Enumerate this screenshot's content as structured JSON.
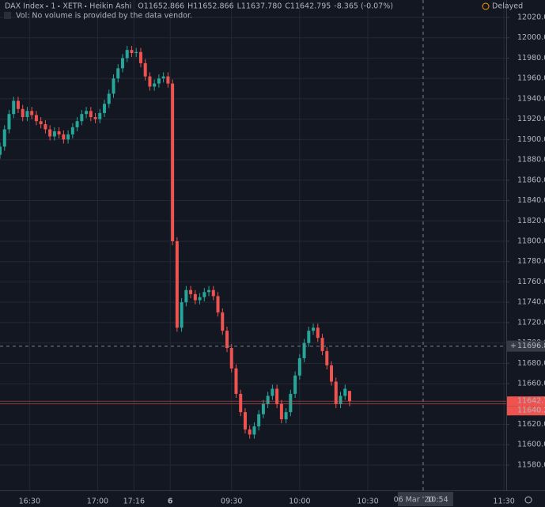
{
  "chart_data": {
    "type": "candlestick",
    "header": {
      "symbol": "DAX Index",
      "interval": "1",
      "exchange": "XETR",
      "style": "Heikin Ashi",
      "status": "Delayed",
      "volume_note": "Vol: No volume is provided by the data vendor."
    },
    "legend_values": [
      {
        "key": "O",
        "value": 11652.866
      },
      {
        "key": "H",
        "value": 11652.866
      },
      {
        "key": "L",
        "value": 11637.78,
        "label": "11637.780"
      },
      {
        "key": "C",
        "value": 11642.795
      }
    ],
    "change": "-8.365 (-0.07%)",
    "up_color": "#26a69a",
    "down_color": "#ef5350",
    "open": [
      11885,
      11893,
      11910,
      11925,
      11938,
      11930,
      11922,
      11928,
      11924,
      11918,
      11915,
      11910,
      11903,
      11908,
      11905,
      11900,
      11905,
      11912,
      11918,
      11925,
      11928,
      11922,
      11920,
      11926,
      11935,
      11945,
      11960,
      11970,
      11980,
      11988,
      11985,
      11986,
      11975,
      11962,
      11952,
      11955,
      11960,
      11962,
      11955,
      11800,
      11715,
      11740,
      11752,
      11748,
      11742,
      11745,
      11750,
      11752,
      11746,
      11730,
      11712,
      11695,
      11675,
      11650,
      11632,
      11615,
      11610,
      11618,
      11630,
      11640,
      11648,
      11655,
      11640,
      11625,
      11632,
      11650,
      11668,
      11685,
      11700,
      11712,
      11715,
      11705,
      11692,
      11678,
      11662,
      11640,
      11648,
      11652.866
    ],
    "high": [
      11897,
      11914,
      11929,
      11942,
      11942,
      11934,
      11932,
      11932,
      11928,
      11922,
      11919,
      11914,
      11912,
      11912,
      11909,
      11909,
      11916,
      11922,
      11929,
      11932,
      11932,
      11926,
      11930,
      11939,
      11949,
      11964,
      11974,
      11984,
      11992,
      11992,
      11990,
      11990,
      11979,
      11966,
      11959,
      11964,
      11966,
      11966,
      11959,
      11804,
      11744,
      11756,
      11756,
      11752,
      11749,
      11754,
      11756,
      11756,
      11750,
      11734,
      11716,
      11699,
      11679,
      11654,
      11636,
      11619,
      11622,
      11634,
      11644,
      11652,
      11659,
      11659,
      11644,
      11636,
      11654,
      11672,
      11689,
      11704,
      11716,
      11719,
      11719,
      11709,
      11696,
      11682,
      11666,
      11652,
      11659,
      11652.866
    ],
    "low": [
      11881,
      11889,
      11906,
      11921,
      11926,
      11918,
      11918,
      11920,
      11914,
      11911,
      11906,
      11899,
      11899,
      11901,
      11896,
      11896,
      11901,
      11908,
      11914,
      11921,
      11918,
      11916,
      11916,
      11922,
      11931,
      11941,
      11956,
      11966,
      11976,
      11981,
      11981,
      11971,
      11958,
      11948,
      11948,
      11951,
      11956,
      11951,
      11796,
      11711,
      11711,
      11736,
      11744,
      11738,
      11738,
      11741,
      11746,
      11742,
      11726,
      11708,
      11691,
      11671,
      11646,
      11628,
      11611,
      11606,
      11606,
      11614,
      11626,
      11636,
      11644,
      11636,
      11621,
      11621,
      11628,
      11646,
      11664,
      11681,
      11696,
      11708,
      11701,
      11688,
      11674,
      11658,
      11636,
      11636,
      11644,
      11637.78
    ],
    "close": [
      11893,
      11910,
      11925,
      11938,
      11930,
      11922,
      11928,
      11924,
      11918,
      11915,
      11910,
      11903,
      11908,
      11905,
      11900,
      11905,
      11912,
      11918,
      11925,
      11928,
      11922,
      11920,
      11926,
      11935,
      11945,
      11960,
      11970,
      11980,
      11988,
      11985,
      11986,
      11975,
      11962,
      11952,
      11955,
      11960,
      11962,
      11955,
      11800,
      11715,
      11740,
      11752,
      11748,
      11742,
      11745,
      11750,
      11752,
      11746,
      11730,
      11712,
      11695,
      11675,
      11650,
      11632,
      11615,
      11610,
      11618,
      11630,
      11640,
      11648,
      11655,
      11640,
      11625,
      11632,
      11650,
      11668,
      11685,
      11700,
      11712,
      11715,
      11705,
      11692,
      11678,
      11662,
      11640,
      11648,
      11655,
      11642.795
    ],
    "x": [
      0,
      2,
      4,
      6,
      8,
      10,
      12,
      14,
      16,
      18,
      20,
      22,
      24,
      26,
      28,
      30,
      32,
      34,
      36,
      38,
      40,
      42,
      44,
      46,
      48,
      50,
      52,
      54,
      56,
      58,
      60,
      62,
      64,
      66,
      68,
      70,
      72,
      74,
      76,
      78,
      80,
      82,
      84,
      86,
      88,
      90,
      92,
      94,
      96,
      98,
      100,
      102,
      104,
      106,
      108,
      110,
      112,
      114,
      116,
      118,
      120,
      122,
      124,
      126,
      128,
      130,
      132,
      134,
      136,
      138,
      140,
      142,
      144,
      146,
      148,
      150,
      152,
      154
    ],
    "xlim": [
      0,
      223
    ],
    "xticks": [
      {
        "value": 13,
        "label": "16:30"
      },
      {
        "value": 43,
        "label": "17:00"
      },
      {
        "value": 59,
        "label": "17:16"
      },
      {
        "value": 75,
        "label": "6"
      },
      {
        "value": 102,
        "label": "09:30"
      },
      {
        "value": 132,
        "label": "10:00"
      },
      {
        "value": 162,
        "label": "10:30"
      },
      {
        "value": 222,
        "label": "11:30"
      }
    ],
    "ylim": [
      11555.1,
      12037.1
    ],
    "yticks": [
      {
        "value": 11580,
        "label": "11580.000"
      },
      {
        "value": 11600,
        "label": "11600.000"
      },
      {
        "value": 11620,
        "label": "11620.000"
      },
      {
        "value": 11640,
        "label": "11640.000"
      },
      {
        "value": 11660,
        "label": "11660.000"
      },
      {
        "value": 11680,
        "label": "11680.000"
      },
      {
        "value": 11700,
        "label": "11700.000"
      },
      {
        "value": 11720,
        "label": "11720.000"
      },
      {
        "value": 11740,
        "label": "11740.000"
      },
      {
        "value": 11760,
        "label": "11760.000"
      },
      {
        "value": 11780,
        "label": "11780.000"
      },
      {
        "value": 11800,
        "label": "11800.000"
      },
      {
        "value": 11820,
        "label": "11820.000"
      },
      {
        "value": 11840,
        "label": "11840.000"
      },
      {
        "value": 11860,
        "label": "11860.000"
      },
      {
        "value": 11880,
        "label": "11880.000"
      },
      {
        "value": 11900,
        "label": "11900.000"
      },
      {
        "value": 11920,
        "label": "11920.000"
      },
      {
        "value": 11940,
        "label": "11940.000"
      },
      {
        "value": 11960,
        "label": "11960.000"
      },
      {
        "value": 11980,
        "label": "11980.000"
      },
      {
        "value": 12000,
        "label": "12000.000"
      },
      {
        "value": 12020,
        "label": "12020.000"
      }
    ],
    "grid": true,
    "price_lines": [
      {
        "value": 11642.795,
        "color": "#ef5350"
      },
      {
        "value": 11640.28,
        "label": "11640.280",
        "color": "#ef5350"
      }
    ],
    "crosshair": {
      "x": 186.4,
      "price": 11696.895,
      "date_label": "06 Mar '20",
      "time_label": "10:54"
    }
  }
}
